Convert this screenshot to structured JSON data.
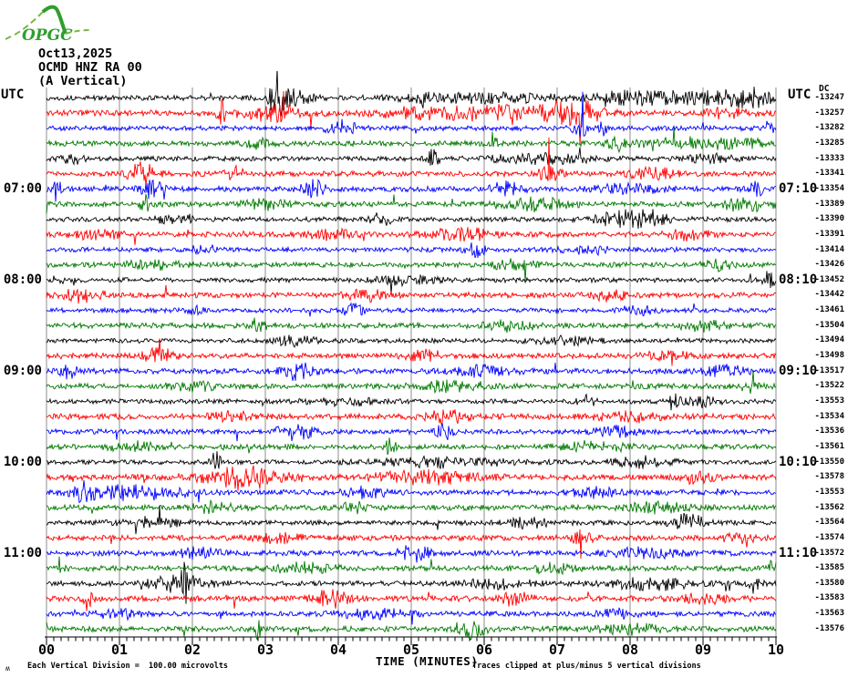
{
  "header": {
    "date": "Oct13,2025",
    "station": "OCMD HNZ RA 00",
    "component": "(A Vertical)"
  },
  "logo": {
    "text": "OPGC",
    "color_dark": "#2f9e2f",
    "color_light": "#7ab648"
  },
  "axes": {
    "left_header": "UTC",
    "right_header": "UTC",
    "right_subheader": "DC",
    "left_time_labels": [
      {
        "line": 7,
        "label": "07:00"
      },
      {
        "line": 13,
        "label": "08:00"
      },
      {
        "line": 19,
        "label": "09:00"
      },
      {
        "line": 25,
        "label": "10:00"
      },
      {
        "line": 31,
        "label": "11:00"
      }
    ],
    "right_time_labels": [
      {
        "line": 7,
        "label": "07:10"
      },
      {
        "line": 13,
        "label": "08:10"
      },
      {
        "line": 19,
        "label": "09:10"
      },
      {
        "line": 25,
        "label": "10:10"
      },
      {
        "line": 31,
        "label": "11:10"
      }
    ],
    "x_tick_labels": [
      "00",
      "01",
      "02",
      "03",
      "04",
      "05",
      "06",
      "07",
      "08",
      "09",
      "10"
    ],
    "x_axis_title": "TIME (MINUTES)"
  },
  "footer": {
    "mark": "ʍ",
    "scale_note": "Each Vertical Division =  100.00 microvolts",
    "clip_note": "Traces clipped at plus/minus 5 vertical divisions"
  },
  "chart_data": {
    "type": "line",
    "title": "OCMD HNZ RA 00 helicorder, Oct13,2025 (A Vertical)",
    "xlabel": "TIME (MINUTES)",
    "x_range_minutes": [
      0,
      10
    ],
    "minutes_per_line": 10,
    "grid": "vertical gridlines at each minute",
    "legend_position": "none",
    "colors_cycle": [
      "#000000",
      "#ff0000",
      "#0000ff",
      "#007800"
    ],
    "scale_microvolts_per_division": 100.0,
    "clip_divisions": 5,
    "traces": [
      {
        "utc_start": "06:00",
        "utc_end": "06:10",
        "color": "#000000",
        "dc": -13247,
        "base_amp": 2.8,
        "events": [
          [
            3.15,
            26,
            0.06
          ],
          [
            3.35,
            9,
            0.18
          ],
          [
            5.15,
            7,
            0.05
          ],
          [
            6.0,
            4,
            0.8
          ],
          [
            8.0,
            5,
            0.3
          ],
          [
            9.0,
            6,
            0.7
          ],
          [
            9.6,
            7,
            0.2
          ]
        ]
      },
      {
        "utc_start": "06:10",
        "utc_end": "06:20",
        "color": "#ff0000",
        "dc": -13257,
        "base_amp": 3.2,
        "events": [
          [
            2.4,
            12,
            0.05
          ],
          [
            3.1,
            8,
            0.3
          ],
          [
            5.0,
            4,
            0.3
          ],
          [
            6.2,
            7,
            0.7
          ],
          [
            7.25,
            12,
            0.25
          ],
          [
            9.3,
            5,
            0.2
          ]
        ]
      },
      {
        "utc_start": "06:20",
        "utc_end": "06:30",
        "color": "#0000ff",
        "dc": -13282,
        "base_amp": 2.6,
        "events": [
          [
            4.05,
            8,
            0.15
          ],
          [
            7.3,
            9,
            0.08
          ],
          [
            7.65,
            7,
            0.06
          ],
          [
            9.9,
            8,
            0.05
          ]
        ]
      },
      {
        "utc_start": "06:30",
        "utc_end": "06:40",
        "color": "#007800",
        "dc": -13285,
        "base_amp": 3.0,
        "events": [
          [
            2.9,
            5,
            0.1
          ],
          [
            6.1,
            11,
            0.05
          ],
          [
            7.8,
            8,
            0.08
          ],
          [
            8.6,
            5,
            0.4
          ],
          [
            9.4,
            5,
            0.3
          ]
        ]
      },
      {
        "utc_start": "06:40",
        "utc_end": "06:50",
        "color": "#000000",
        "dc": -13333,
        "base_amp": 2.6,
        "events": [
          [
            0.35,
            6,
            0.1
          ],
          [
            5.3,
            9,
            0.06
          ],
          [
            6.8,
            5,
            0.5
          ],
          [
            9.1,
            5,
            0.2
          ]
        ]
      },
      {
        "utc_start": "06:50",
        "utc_end": "07:00",
        "color": "#ff0000",
        "dc": -13341,
        "base_amp": 3.0,
        "events": [
          [
            1.3,
            11,
            0.15
          ],
          [
            2.6,
            6,
            0.1
          ],
          [
            6.9,
            9,
            0.1
          ],
          [
            8.3,
            6,
            0.2
          ]
        ]
      },
      {
        "utc_start": "07:00",
        "utc_end": "07:10",
        "color": "#0000ff",
        "dc": -13354,
        "base_amp": 3.0,
        "events": [
          [
            0.15,
            13,
            0.05
          ],
          [
            1.45,
            9,
            0.1
          ],
          [
            3.65,
            11,
            0.1
          ],
          [
            6.3,
            7,
            0.15
          ],
          [
            8.0,
            5,
            0.3
          ],
          [
            9.75,
            9,
            0.08
          ]
        ]
      },
      {
        "utc_start": "07:10",
        "utc_end": "07:20",
        "color": "#007800",
        "dc": -13389,
        "base_amp": 3.0,
        "events": [
          [
            1.35,
            15,
            0.04
          ],
          [
            3.0,
            5,
            0.2
          ],
          [
            6.7,
            6,
            0.3
          ],
          [
            9.6,
            7,
            0.25
          ]
        ]
      },
      {
        "utc_start": "07:20",
        "utc_end": "07:30",
        "color": "#000000",
        "dc": -13390,
        "base_amp": 2.6,
        "events": [
          [
            1.8,
            5,
            0.2
          ],
          [
            4.6,
            7,
            0.1
          ],
          [
            7.9,
            9,
            0.25
          ],
          [
            8.3,
            7,
            0.15
          ]
        ]
      },
      {
        "utc_start": "07:30",
        "utc_end": "07:40",
        "color": "#ff0000",
        "dc": -13391,
        "base_amp": 3.0,
        "events": [
          [
            0.7,
            5,
            0.2
          ],
          [
            3.9,
            5,
            0.2
          ],
          [
            5.7,
            6,
            0.3
          ],
          [
            8.8,
            5,
            0.2
          ]
        ]
      },
      {
        "utc_start": "07:40",
        "utc_end": "07:50",
        "color": "#0000ff",
        "dc": -13414,
        "base_amp": 2.6,
        "events": [
          [
            2.2,
            5,
            0.15
          ],
          [
            5.9,
            7,
            0.1
          ],
          [
            7.4,
            5,
            0.2
          ]
        ]
      },
      {
        "utc_start": "07:50",
        "utc_end": "08:00",
        "color": "#007800",
        "dc": -13426,
        "base_amp": 2.8,
        "events": [
          [
            1.5,
            4,
            0.3
          ],
          [
            6.4,
            5,
            0.2
          ],
          [
            9.2,
            5,
            0.15
          ]
        ]
      },
      {
        "utc_start": "08:00",
        "utc_end": "08:10",
        "color": "#000000",
        "dc": -13452,
        "base_amp": 2.6,
        "events": [
          [
            0.15,
            7,
            0.05
          ],
          [
            4.9,
            4,
            0.3
          ],
          [
            9.9,
            10,
            0.05
          ]
        ]
      },
      {
        "utc_start": "08:10",
        "utc_end": "08:20",
        "color": "#ff0000",
        "dc": -13442,
        "base_amp": 3.0,
        "events": [
          [
            0.5,
            7,
            0.2
          ],
          [
            4.4,
            5,
            0.2
          ],
          [
            7.7,
            5,
            0.2
          ]
        ]
      },
      {
        "utc_start": "08:20",
        "utc_end": "08:30",
        "color": "#0000ff",
        "dc": -13461,
        "base_amp": 2.6,
        "events": [
          [
            2.05,
            10,
            0.05
          ],
          [
            4.2,
            6,
            0.1
          ],
          [
            8.1,
            5,
            0.15
          ]
        ]
      },
      {
        "utc_start": "08:30",
        "utc_end": "08:40",
        "color": "#007800",
        "dc": -13504,
        "base_amp": 3.0,
        "events": [
          [
            2.9,
            7,
            0.1
          ],
          [
            6.3,
            5,
            0.2
          ],
          [
            9.0,
            5,
            0.2
          ]
        ]
      },
      {
        "utc_start": "08:40",
        "utc_end": "08:50",
        "color": "#000000",
        "dc": -13494,
        "base_amp": 2.5,
        "events": [
          [
            3.4,
            5,
            0.2
          ],
          [
            7.1,
            4,
            0.3
          ]
        ]
      },
      {
        "utc_start": "08:50",
        "utc_end": "09:00",
        "color": "#ff0000",
        "dc": -13498,
        "base_amp": 3.0,
        "events": [
          [
            1.55,
            7,
            0.15
          ],
          [
            5.2,
            5,
            0.2
          ],
          [
            8.5,
            5,
            0.2
          ]
        ]
      },
      {
        "utc_start": "09:00",
        "utc_end": "09:10",
        "color": "#0000ff",
        "dc": -13517,
        "base_amp": 3.0,
        "events": [
          [
            0.3,
            7,
            0.08
          ],
          [
            3.45,
            9,
            0.15
          ],
          [
            6.0,
            5,
            0.3
          ],
          [
            9.3,
            5,
            0.2
          ]
        ]
      },
      {
        "utc_start": "09:10",
        "utc_end": "09:20",
        "color": "#007800",
        "dc": -13522,
        "base_amp": 3.0,
        "events": [
          [
            2.0,
            5,
            0.2
          ],
          [
            5.5,
            5,
            0.3
          ],
          [
            9.6,
            7,
            0.08
          ]
        ]
      },
      {
        "utc_start": "09:20",
        "utc_end": "09:30",
        "color": "#000000",
        "dc": -13553,
        "base_amp": 2.6,
        "events": [
          [
            4.1,
            4,
            0.3
          ],
          [
            7.4,
            6,
            0.08
          ],
          [
            8.6,
            11,
            0.05
          ],
          [
            9.0,
            5,
            0.15
          ]
        ]
      },
      {
        "utc_start": "09:30",
        "utc_end": "09:40",
        "color": "#ff0000",
        "dc": -13534,
        "base_amp": 3.2,
        "events": [
          [
            2.5,
            5,
            0.2
          ],
          [
            5.5,
            6,
            0.2
          ],
          [
            8.0,
            5,
            0.3
          ]
        ]
      },
      {
        "utc_start": "09:40",
        "utc_end": "09:50",
        "color": "#0000ff",
        "dc": -13536,
        "base_amp": 2.8,
        "events": [
          [
            3.4,
            10,
            0.15
          ],
          [
            5.45,
            8,
            0.08
          ],
          [
            7.8,
            5,
            0.2
          ]
        ]
      },
      {
        "utc_start": "09:50",
        "utc_end": "10:00",
        "color": "#007800",
        "dc": -13561,
        "base_amp": 3.0,
        "events": [
          [
            1.2,
            5,
            0.2
          ],
          [
            4.7,
            9,
            0.06
          ],
          [
            7.5,
            5,
            0.3
          ]
        ]
      },
      {
        "utc_start": "10:00",
        "utc_end": "10:10",
        "color": "#000000",
        "dc": -13550,
        "base_amp": 2.6,
        "events": [
          [
            2.32,
            17,
            0.04
          ],
          [
            5.5,
            5,
            0.6
          ],
          [
            8.2,
            5,
            0.3
          ]
        ]
      },
      {
        "utc_start": "10:10",
        "utc_end": "10:20",
        "color": "#ff0000",
        "dc": -13578,
        "base_amp": 3.2,
        "events": [
          [
            2.7,
            12,
            0.35
          ],
          [
            5.2,
            6,
            0.5
          ],
          [
            8.9,
            5,
            0.2
          ]
        ]
      },
      {
        "utc_start": "10:20",
        "utc_end": "10:30",
        "color": "#0000ff",
        "dc": -13553,
        "base_amp": 3.0,
        "events": [
          [
            0.5,
            10,
            0.08
          ],
          [
            1.2,
            7,
            0.5
          ],
          [
            4.4,
            5,
            0.2
          ],
          [
            7.5,
            5,
            0.2
          ]
        ]
      },
      {
        "utc_start": "10:30",
        "utc_end": "10:40",
        "color": "#007800",
        "dc": -13562,
        "base_amp": 3.0,
        "events": [
          [
            2.3,
            5,
            0.2
          ],
          [
            4.2,
            7,
            0.1
          ],
          [
            8.4,
            5,
            0.3
          ]
        ]
      },
      {
        "utc_start": "10:40",
        "utc_end": "10:50",
        "color": "#000000",
        "dc": -13564,
        "base_amp": 2.7,
        "events": [
          [
            1.4,
            5,
            0.3
          ],
          [
            6.6,
            5,
            0.2
          ],
          [
            8.8,
            9,
            0.15
          ]
        ]
      },
      {
        "utc_start": "10:50",
        "utc_end": "11:00",
        "color": "#ff0000",
        "dc": -13574,
        "base_amp": 3.0,
        "events": [
          [
            3.2,
            5,
            0.2
          ],
          [
            7.35,
            8,
            0.1
          ],
          [
            9.5,
            5,
            0.15
          ]
        ]
      },
      {
        "utc_start": "11:00",
        "utc_end": "11:10",
        "color": "#0000ff",
        "dc": -13572,
        "base_amp": 3.0,
        "events": [
          [
            2.1,
            5,
            0.2
          ],
          [
            5.05,
            9,
            0.15
          ],
          [
            8.2,
            5,
            0.3
          ]
        ]
      },
      {
        "utc_start": "11:10",
        "utc_end": "11:20",
        "color": "#007800",
        "dc": -13585,
        "base_amp": 3.0,
        "events": [
          [
            0.16,
            11,
            0.04
          ],
          [
            3.5,
            5,
            0.3
          ],
          [
            6.9,
            5,
            0.2
          ],
          [
            9.95,
            18,
            0.03
          ]
        ]
      },
      {
        "utc_start": "11:20",
        "utc_end": "11:30",
        "color": "#000000",
        "dc": -13580,
        "base_amp": 2.8,
        "events": [
          [
            1.9,
            16,
            0.05
          ],
          [
            1.8,
            8,
            0.3
          ],
          [
            6.2,
            5,
            0.3
          ],
          [
            8.3,
            6,
            0.4
          ],
          [
            9.7,
            9,
            0.06
          ]
        ]
      },
      {
        "utc_start": "11:30",
        "utc_end": "11:40",
        "color": "#ff0000",
        "dc": -13583,
        "base_amp": 3.2,
        "events": [
          [
            0.55,
            11,
            0.05
          ],
          [
            3.9,
            9,
            0.15
          ],
          [
            6.4,
            7,
            0.15
          ],
          [
            9.0,
            5,
            0.2
          ]
        ]
      },
      {
        "utc_start": "11:40",
        "utc_end": "11:50",
        "color": "#0000ff",
        "dc": -13563,
        "base_amp": 2.8,
        "events": [
          [
            1.0,
            5,
            0.2
          ],
          [
            4.5,
            5,
            0.3
          ],
          [
            7.9,
            5,
            0.2
          ]
        ]
      },
      {
        "utc_start": "11:50",
        "utc_end": "12:00",
        "color": "#007800",
        "dc": -13576,
        "base_amp": 3.0,
        "events": [
          [
            2.9,
            10,
            0.03
          ],
          [
            5.8,
            9,
            0.15
          ],
          [
            8.0,
            5,
            0.3
          ]
        ]
      }
    ]
  }
}
